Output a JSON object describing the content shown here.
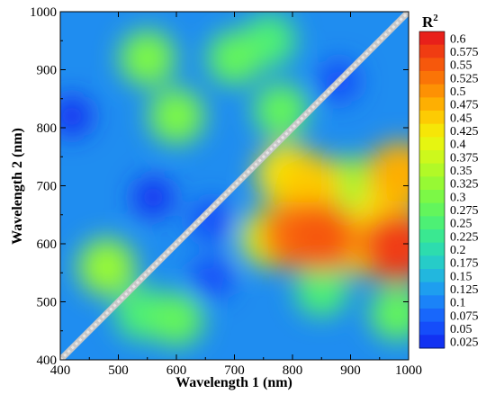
{
  "chart_data": {
    "type": "heatmap",
    "xlabel": "Wavelength 1 (nm)",
    "ylabel": "Wavelength 2 (nm)",
    "xlim": [
      400,
      1000
    ],
    "ylim": [
      400,
      1000
    ],
    "x_ticks": [
      "400",
      "500",
      "600",
      "700",
      "800",
      "900",
      "1000"
    ],
    "y_ticks": [
      "400",
      "500",
      "600",
      "700",
      "800",
      "900",
      "1000"
    ],
    "colorbar": {
      "title_main": "R",
      "title_sup": "2",
      "levels": [
        "0.6",
        "0.575",
        "0.55",
        "0.525",
        "0.5",
        "0.475",
        "0.45",
        "0.425",
        "0.4",
        "0.375",
        "0.35",
        "0.325",
        "0.3",
        "0.275",
        "0.25",
        "0.225",
        "0.2",
        "0.175",
        "0.15",
        "0.125",
        "0.1",
        "0.075",
        "0.05",
        "0.025"
      ],
      "colors": [
        "#e8201a",
        "#f03c12",
        "#f6580c",
        "#fa7407",
        "#fd9104",
        "#feaf02",
        "#fdcb03",
        "#f6e607",
        "#e6f511",
        "#cdf81c",
        "#b2f927",
        "#97f934",
        "#7cf846",
        "#63f55c",
        "#4df075",
        "#3ae891",
        "#2ddcae",
        "#26ccc8",
        "#22b7de",
        "#1e9eef",
        "#1b83f8",
        "#1867fb",
        "#154dfa",
        "#1232f2"
      ]
    },
    "diagonal": {
      "from": [
        400,
        400
      ],
      "to": [
        1000,
        1000
      ],
      "color": "#c8c8c8"
    },
    "regions": [
      {
        "x": 980,
        "y": 595,
        "r": 0.58
      },
      {
        "x": 850,
        "y": 612,
        "r": 0.56
      },
      {
        "x": 800,
        "y": 615,
        "r": 0.52
      },
      {
        "x": 920,
        "y": 600,
        "r": 0.45
      },
      {
        "x": 760,
        "y": 610,
        "r": 0.38
      },
      {
        "x": 830,
        "y": 700,
        "r": 0.45
      },
      {
        "x": 790,
        "y": 720,
        "r": 0.42
      },
      {
        "x": 985,
        "y": 720,
        "r": 0.48
      },
      {
        "x": 960,
        "y": 650,
        "r": 0.42
      },
      {
        "x": 480,
        "y": 560,
        "r": 0.33
      },
      {
        "x": 900,
        "y": 700,
        "r": 0.32
      },
      {
        "x": 550,
        "y": 920,
        "r": 0.3
      },
      {
        "x": 600,
        "y": 820,
        "r": 0.3
      },
      {
        "x": 700,
        "y": 920,
        "r": 0.27
      },
      {
        "x": 760,
        "y": 950,
        "r": 0.25
      },
      {
        "x": 600,
        "y": 470,
        "r": 0.27
      },
      {
        "x": 540,
        "y": 480,
        "r": 0.25
      },
      {
        "x": 980,
        "y": 480,
        "r": 0.27
      },
      {
        "x": 850,
        "y": 520,
        "r": 0.24
      },
      {
        "x": 780,
        "y": 830,
        "r": 0.27
      },
      {
        "x": 880,
        "y": 880,
        "r": 0.05
      },
      {
        "x": 660,
        "y": 640,
        "r": 0.05
      },
      {
        "x": 420,
        "y": 820,
        "r": 0.03
      },
      {
        "x": 560,
        "y": 680,
        "r": 0.03
      },
      {
        "x": 660,
        "y": 540,
        "r": 0.05
      }
    ]
  }
}
